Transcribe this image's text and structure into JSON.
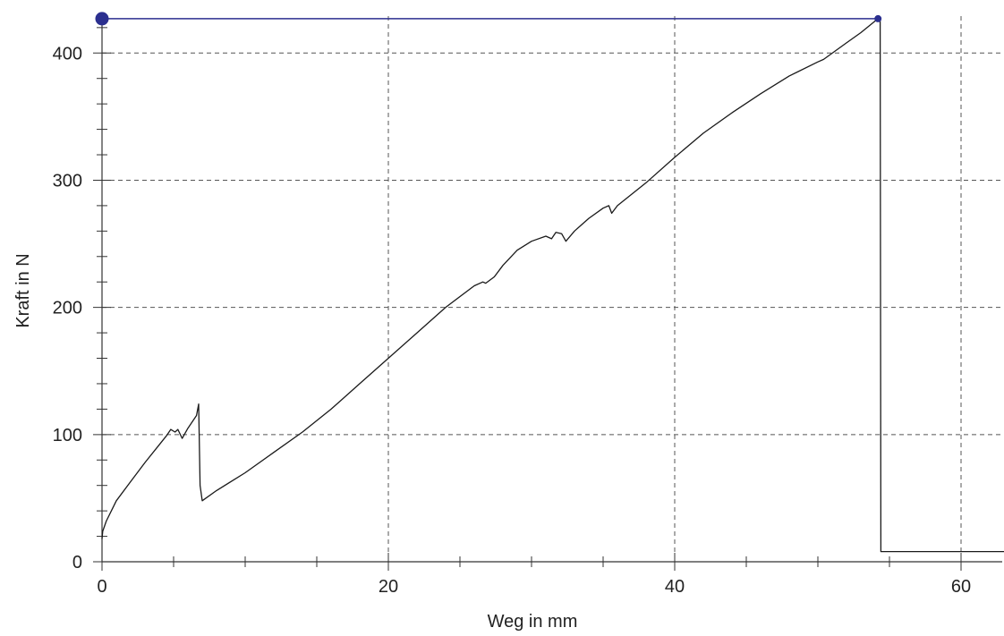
{
  "chart_data": {
    "type": "line",
    "xlabel": "Weg in mm",
    "ylabel": "Kraft in N",
    "xlim": [
      0,
      63
    ],
    "ylim": [
      0,
      427
    ],
    "x_ticks": [
      0,
      20,
      40,
      60
    ],
    "y_ticks": [
      0,
      100,
      200,
      300,
      400
    ],
    "x_tick_labels": [
      "0",
      "20",
      "40",
      "60"
    ],
    "y_tick_labels": [
      "0",
      "100",
      "200",
      "300",
      "400"
    ],
    "x_minor_step": 5,
    "y_minor_step": 20,
    "grid": true,
    "colors": {
      "curve": "#1a1a1a",
      "max_marker": "#2b2f8f",
      "grid": "#555555"
    },
    "series": [
      {
        "x": [
          0,
          0.05,
          0.3,
          1,
          2,
          3,
          4,
          4.5,
          4.8,
          5.1,
          5.3,
          5.6,
          6,
          6.6,
          6.75,
          6.85,
          7,
          8,
          10,
          12,
          14,
          16,
          18,
          20,
          22,
          24,
          26,
          26.6,
          26.8,
          27.4,
          28,
          29,
          30,
          31,
          31.4,
          31.7,
          32.1,
          32.4,
          33,
          34,
          35,
          35.4,
          35.6,
          36,
          38,
          40,
          42,
          44,
          46,
          48,
          50,
          50.4,
          52,
          53,
          54.2,
          54.35,
          54.4,
          55,
          57,
          59,
          61,
          63
        ],
        "y": [
          18,
          24,
          32,
          48,
          63,
          78,
          92,
          99,
          104,
          102,
          104,
          97,
          105,
          115,
          124,
          60,
          48,
          56,
          70,
          86,
          102,
          120,
          140,
          160,
          180,
          200,
          217,
          220,
          219,
          224,
          233,
          245,
          252,
          256,
          254,
          259,
          258,
          252,
          260,
          270,
          278,
          280,
          274,
          280,
          298,
          318,
          337,
          353,
          368,
          382,
          393,
          395,
          408,
          416,
          427,
          427,
          8,
          8,
          8,
          8,
          8,
          8
        ]
      }
    ],
    "annotations": [
      {
        "type": "max-line",
        "x0": 0,
        "x1": 54.2,
        "y": 427
      }
    ]
  }
}
